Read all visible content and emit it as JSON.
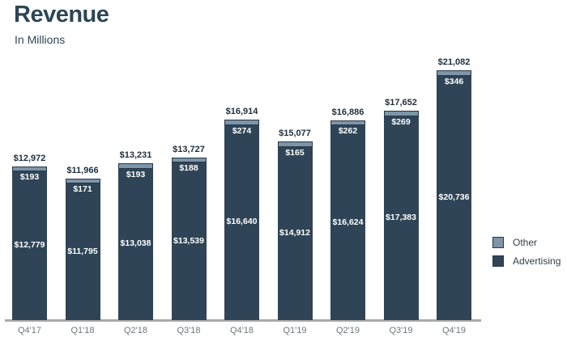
{
  "chart_data": {
    "type": "bar",
    "stacked": true,
    "title": "Revenue",
    "subtitle": "In Millions",
    "categories": [
      "Q4'17",
      "Q1'18",
      "Q2'18",
      "Q3'18",
      "Q4'18",
      "Q1'19",
      "Q2'19",
      "Q3'19",
      "Q4'19"
    ],
    "series": [
      {
        "name": "Advertising",
        "color": "#2f4557",
        "values": [
          12779,
          11795,
          13038,
          13539,
          16640,
          14912,
          16624,
          17383,
          20736
        ],
        "labels": [
          "$12,779",
          "$11,795",
          "$13,038",
          "$13,539",
          "$16,640",
          "$14,912",
          "$16,624",
          "$17,383",
          "$20,736"
        ]
      },
      {
        "name": "Other",
        "color": "#7e95a9",
        "values": [
          193,
          171,
          193,
          188,
          274,
          165,
          262,
          269,
          346
        ],
        "labels": [
          "$193",
          "$171",
          "$193",
          "$188",
          "$274",
          "$165",
          "$262",
          "$269",
          "$346"
        ]
      }
    ],
    "totals": [
      12972,
      11966,
      13231,
      13727,
      16914,
      15077,
      16886,
      17652,
      21082
    ],
    "total_labels": [
      "$12,972",
      "$11,966",
      "$13,231",
      "$13,727",
      "$16,914",
      "$15,077",
      "$16,886",
      "$17,652",
      "$21,082"
    ],
    "legend": {
      "position": "right-middle",
      "entries": [
        "Other",
        "Advertising"
      ]
    },
    "axes": {
      "y_axis_visible": false,
      "x_axis_line": true,
      "grid": false,
      "ylim": [
        0,
        21082
      ]
    }
  },
  "colors": {
    "advertising": "#2f4557",
    "other": "#7e95a9",
    "segment_border": "#243645",
    "axis_line": "#a9a9a9",
    "title_text": "#2d4656",
    "total_label_text": "#1e2f3c",
    "inside_label_text": "#ffffff",
    "category_label_text": "#6e767d",
    "legend_text": "#323f4a"
  }
}
